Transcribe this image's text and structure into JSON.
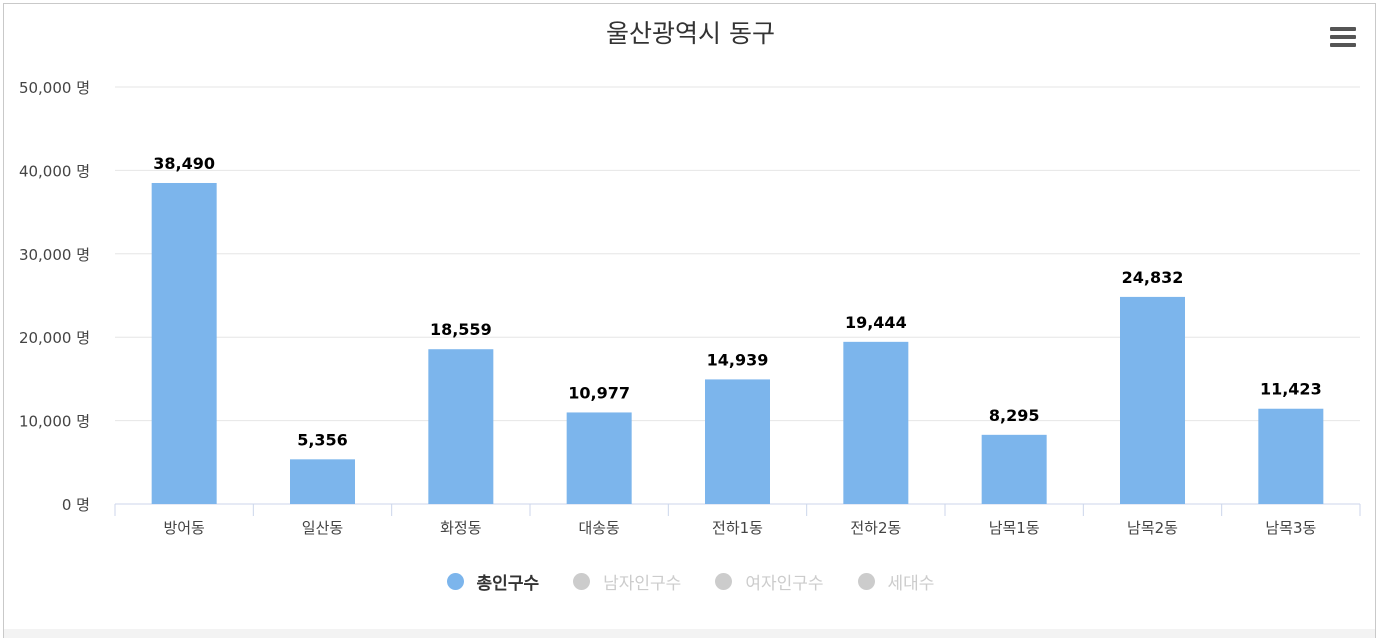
{
  "title": "울산광역시 동구",
  "colors": {
    "bar": "#7cb5ec",
    "grid": "#e6e6e6",
    "axis": "#ccd6eb",
    "text": "#333333",
    "muted": "#cccccc"
  },
  "menu": {
    "icon": "hamburger-menu-icon"
  },
  "legend": [
    {
      "label": "총인구수",
      "active": true
    },
    {
      "label": "남자인구수",
      "active": false
    },
    {
      "label": "여자인구수",
      "active": false
    },
    {
      "label": "세대수",
      "active": false
    }
  ],
  "chart_data": {
    "type": "bar",
    "title": "울산광역시 동구",
    "categories": [
      "방어동",
      "일산동",
      "화정동",
      "대송동",
      "전하1동",
      "전하2동",
      "남목1동",
      "남목2동",
      "남목3동"
    ],
    "series": [
      {
        "name": "총인구수",
        "values": [
          38490,
          5356,
          18559,
          10977,
          14939,
          19444,
          8295,
          24832,
          11423
        ]
      }
    ],
    "value_labels": [
      "38,490",
      "5,356",
      "18,559",
      "10,977",
      "14,939",
      "19,444",
      "8,295",
      "24,832",
      "11,423"
    ],
    "yticks": [
      0,
      10000,
      20000,
      30000,
      40000,
      50000
    ],
    "ytick_labels": [
      "0 명",
      "10,000 명",
      "20,000 명",
      "30,000 명",
      "40,000 명",
      "50,000 명"
    ],
    "ylim": [
      0,
      50000
    ],
    "grid": true,
    "legend_position": "bottom-center"
  }
}
